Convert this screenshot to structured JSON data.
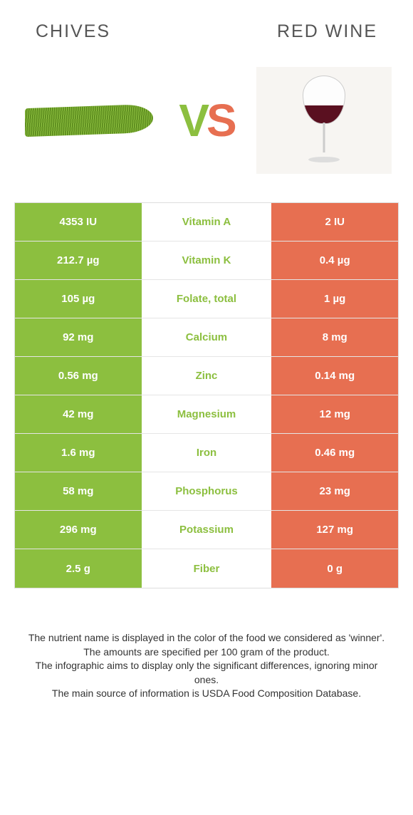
{
  "colors": {
    "left_bg": "#8cbf3f",
    "right_bg": "#e76f51",
    "nutrient_winner_color": "#8cbf3f",
    "border": "#e5e5e5"
  },
  "foods": {
    "left": {
      "name": "Chives"
    },
    "right": {
      "name": "Red Wine"
    }
  },
  "vs_label": {
    "v": "V",
    "s": "S"
  },
  "rows": [
    {
      "left": "4353 IU",
      "nutrient": "Vitamin A",
      "right": "2 IU",
      "winner": "left"
    },
    {
      "left": "212.7 µg",
      "nutrient": "Vitamin K",
      "right": "0.4 µg",
      "winner": "left"
    },
    {
      "left": "105 µg",
      "nutrient": "Folate, total",
      "right": "1 µg",
      "winner": "left"
    },
    {
      "left": "92 mg",
      "nutrient": "Calcium",
      "right": "8 mg",
      "winner": "left"
    },
    {
      "left": "0.56 mg",
      "nutrient": "Zinc",
      "right": "0.14 mg",
      "winner": "left"
    },
    {
      "left": "42 mg",
      "nutrient": "Magnesium",
      "right": "12 mg",
      "winner": "left"
    },
    {
      "left": "1.6 mg",
      "nutrient": "Iron",
      "right": "0.46 mg",
      "winner": "left"
    },
    {
      "left": "58 mg",
      "nutrient": "Phosphorus",
      "right": "23 mg",
      "winner": "left"
    },
    {
      "left": "296 mg",
      "nutrient": "Potassium",
      "right": "127 mg",
      "winner": "left"
    },
    {
      "left": "2.5 g",
      "nutrient": "Fiber",
      "right": "0 g",
      "winner": "left"
    }
  ],
  "footnotes": [
    "The nutrient name is displayed in the color of the food we considered as 'winner'.",
    "The amounts are specified per 100 gram of the product.",
    "The infographic aims to display only the significant differences, ignoring minor ones.",
    "The main source of information is USDA Food Composition Database."
  ]
}
